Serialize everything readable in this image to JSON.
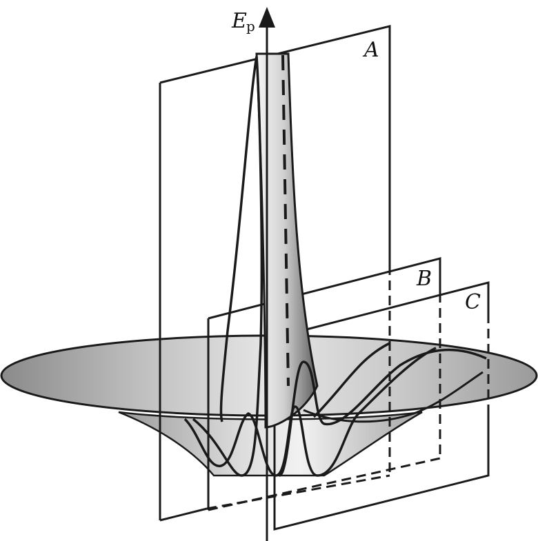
{
  "figure": {
    "description_kind": "potential-energy surface with sectioning planes",
    "axis_label": "E",
    "axis_subscript": "p",
    "planes": [
      {
        "id": "A",
        "label": "A"
      },
      {
        "id": "B",
        "label": "B"
      },
      {
        "id": "C",
        "label": "C"
      }
    ],
    "colors": {
      "stroke": "#1a1a1a",
      "surface_light": "#f4f4f4",
      "surface_mid": "#bdbdbd",
      "surface_dark": "#6e6e6e"
    }
  }
}
